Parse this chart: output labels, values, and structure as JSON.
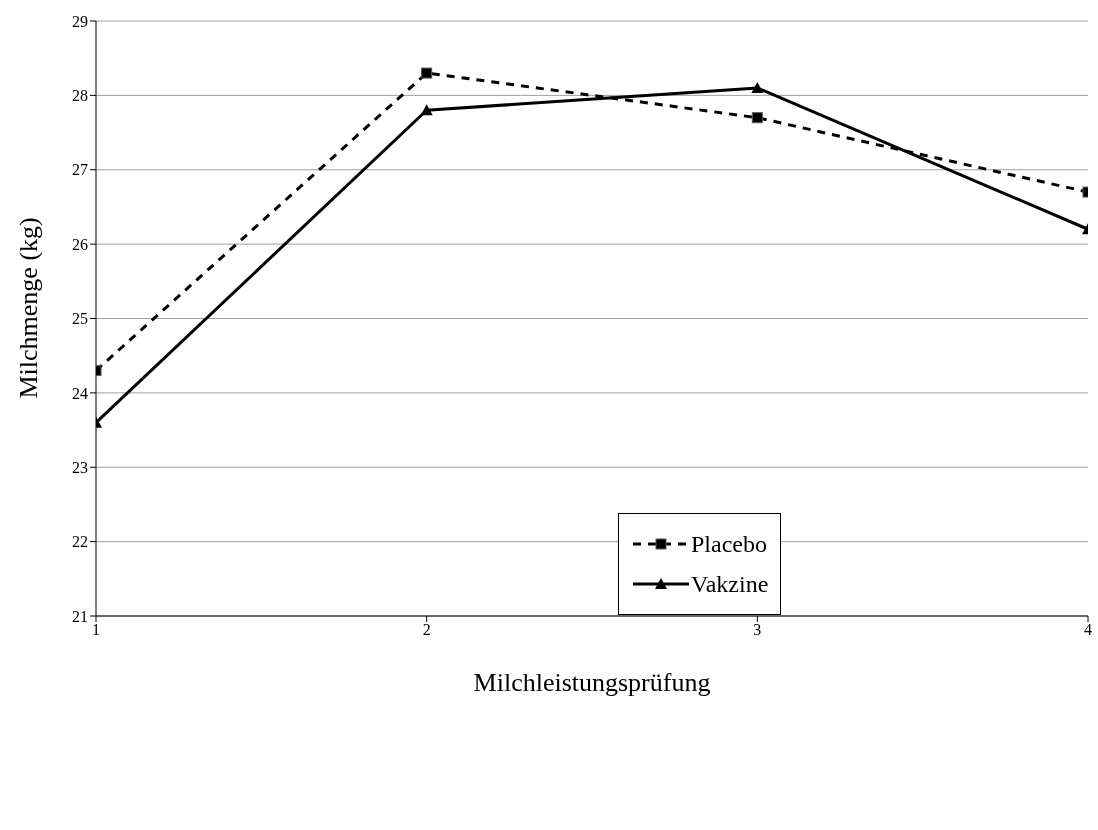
{
  "chart_data": {
    "type": "line",
    "xlabel": "Milchleistungsprüfung",
    "ylabel": "Milchmenge (kg)",
    "x": [
      1,
      2,
      3,
      4
    ],
    "series": [
      {
        "name": "Placebo",
        "color": "#000000",
        "values": [
          24.3,
          28.3,
          27.7,
          26.7
        ],
        "marker": "square",
        "line_style": "dashed"
      },
      {
        "name": "Vakzine",
        "color": "#000000",
        "values": [
          23.6,
          27.8,
          28.1,
          26.2
        ],
        "marker": "triangle",
        "line_style": "solid"
      }
    ],
    "xlim": [
      1,
      4
    ],
    "xticks": [
      1,
      2,
      3,
      4
    ],
    "ylim": [
      21,
      29
    ],
    "yticks": [
      21,
      22,
      23,
      24,
      25,
      26,
      27,
      28,
      29
    ],
    "grid": "y",
    "legend": "bottom right"
  }
}
